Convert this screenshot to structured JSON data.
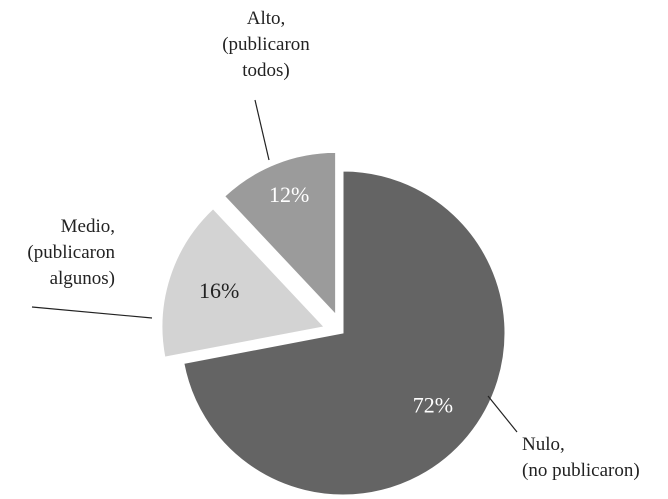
{
  "chart_data": {
    "type": "pie",
    "categories": [
      [
        "Nulo,",
        "(no publicaron)"
      ],
      [
        "Medio,",
        "(publicaron",
        "algunos)"
      ],
      [
        "Alto,",
        "(publicaron",
        "todos)"
      ]
    ],
    "values": [
      72,
      16,
      12
    ],
    "value_labels": [
      "72%",
      "16%",
      "12%"
    ],
    "colors": [
      "#646464",
      "#d3d3d3",
      "#9b9b9b"
    ]
  }
}
